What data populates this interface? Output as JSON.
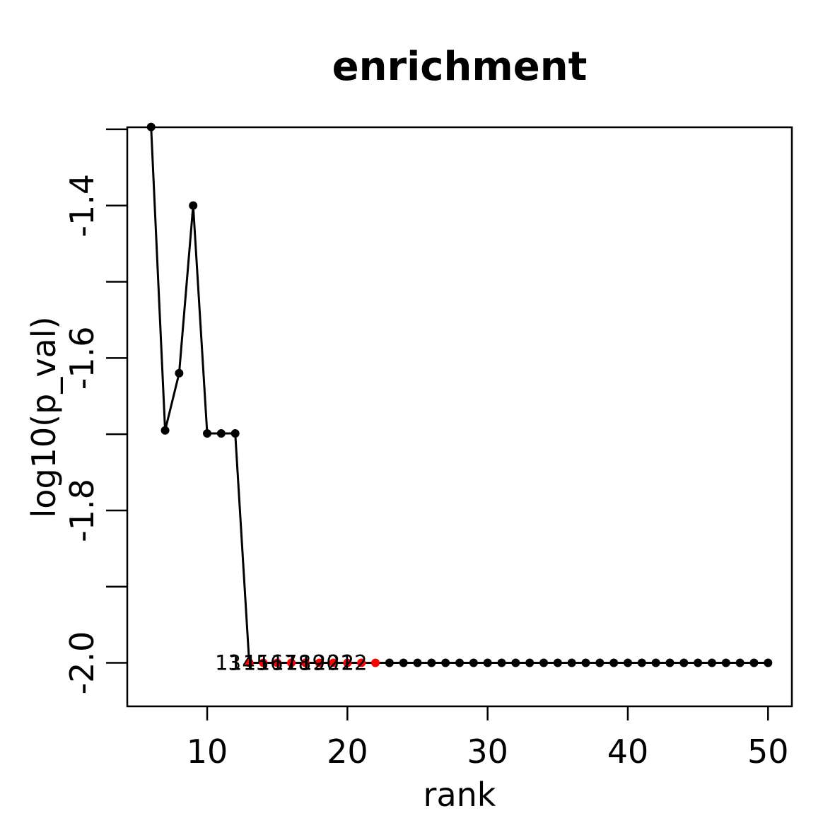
{
  "chart_data": {
    "type": "line",
    "title": "enrichment",
    "xlabel": "rank",
    "ylabel": "log10(p_val)",
    "xlim": [
      4.3,
      51.7
    ],
    "ylim": [
      -2.057,
      -1.2973
    ],
    "xticks": [
      10,
      20,
      30,
      40,
      50
    ],
    "yticks": [
      -2.0,
      -1.9,
      -1.8,
      -1.7,
      -1.6,
      -1.5,
      -1.4,
      -1.3
    ],
    "ytick_labels": {
      "-2.0": "-2.0",
      "-1.8": "-1.8",
      "-1.6": "-1.6",
      "-1.4": "-1.4"
    },
    "grid": false,
    "legend": "none",
    "series": [
      {
        "x": [
          6,
          7,
          8,
          9,
          10,
          11,
          12,
          13,
          14,
          15,
          16,
          17,
          18,
          19,
          20,
          21,
          22,
          23,
          24,
          25,
          26,
          27,
          28,
          29,
          30,
          31,
          32,
          33,
          34,
          35,
          36,
          37,
          38,
          39,
          40,
          41,
          42,
          43,
          44,
          45,
          46,
          47,
          48,
          49,
          50
        ],
        "y": [
          -1.297,
          -1.695,
          -1.62,
          -1.4,
          -1.699,
          -1.699,
          -1.699,
          -2,
          -2,
          -2,
          -2,
          -2,
          -2,
          -2,
          -2,
          -2,
          -2,
          -2,
          -2,
          -2,
          -2,
          -2,
          -2,
          -2,
          -2,
          -2,
          -2,
          -2,
          -2,
          -2,
          -2,
          -2,
          -2,
          -2,
          -2,
          -2,
          -2,
          -2,
          -2,
          -2,
          -2,
          -2,
          -2,
          -2,
          -2
        ],
        "line_color": "#000000",
        "point_color": "#000000"
      }
    ],
    "highlighted_points": {
      "x": [
        13,
        14,
        15,
        16,
        17,
        18,
        19,
        20,
        21,
        22
      ],
      "y": [
        -2,
        -2,
        -2,
        -2,
        -2,
        -2,
        -2,
        -2,
        -2,
        -2
      ],
      "color": "#ff0000"
    },
    "point_labels": [
      {
        "text": "13",
        "x": 13,
        "y": -2
      },
      {
        "text": "14",
        "x": 14,
        "y": -2
      },
      {
        "text": "15",
        "x": 15,
        "y": -2
      },
      {
        "text": "16",
        "x": 16,
        "y": -2
      },
      {
        "text": "17",
        "x": 17,
        "y": -2
      },
      {
        "text": "18",
        "x": 18,
        "y": -2
      },
      {
        "text": "19",
        "x": 19,
        "y": -2
      },
      {
        "text": "20",
        "x": 20,
        "y": -2
      },
      {
        "text": "21",
        "x": 21,
        "y": -2
      },
      {
        "text": "22",
        "x": 22,
        "y": -2
      }
    ]
  }
}
